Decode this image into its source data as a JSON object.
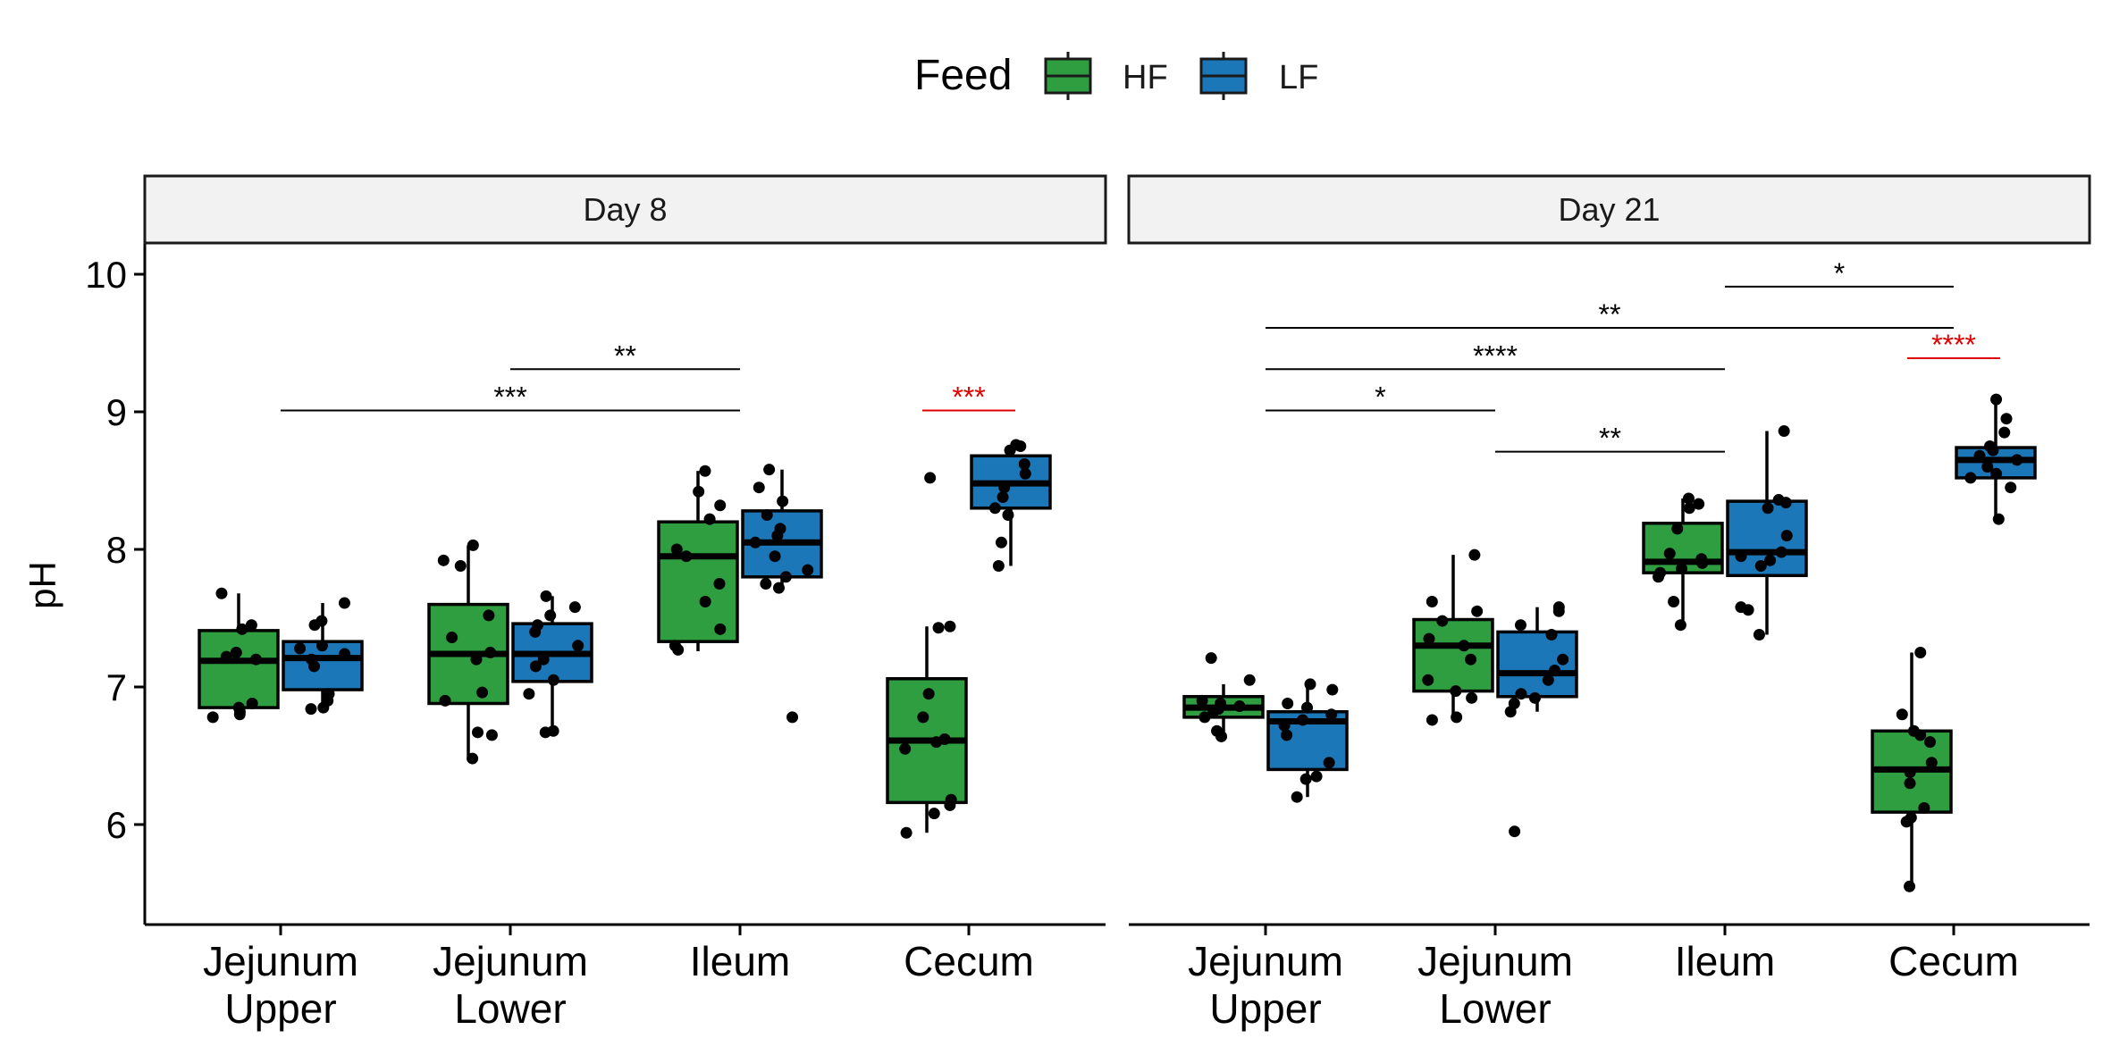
{
  "chart_data": {
    "type": "box",
    "ylabel": "pH",
    "ylim": [
      5.3,
      10.2
    ],
    "y_ticks": [
      6,
      7,
      8,
      9,
      10
    ],
    "grid": false,
    "legend": {
      "title": "Feed",
      "position": "top",
      "items": [
        {
          "label": "HF",
          "color": "#2e9e41"
        },
        {
          "label": "LF",
          "color": "#1c77b9"
        }
      ]
    },
    "categories": [
      {
        "lines": [
          "Jejunum",
          "Upper"
        ]
      },
      {
        "lines": [
          "Jejunum",
          "Lower"
        ]
      },
      {
        "lines": [
          "Ileum"
        ]
      },
      {
        "lines": [
          "Cecum"
        ]
      }
    ],
    "facets": [
      {
        "label": "Day 8",
        "groups": [
          {
            "series": [
              {
                "feed": "HF",
                "min": 6.78,
                "q1": 6.85,
                "median": 7.19,
                "q3": 7.41,
                "max": 7.68,
                "points": [
                  7.68,
                  7.45,
                  7.42,
                  7.25,
                  7.22,
                  7.2,
                  6.88,
                  6.85,
                  6.82,
                  6.8,
                  6.78
                ]
              },
              {
                "feed": "LF",
                "min": 6.84,
                "q1": 6.98,
                "median": 7.21,
                "q3": 7.33,
                "max": 7.61,
                "points": [
                  7.61,
                  7.48,
                  7.45,
                  7.3,
                  7.28,
                  7.24,
                  7.2,
                  7.15,
                  6.95,
                  6.9,
                  6.85,
                  6.84
                ]
              }
            ]
          },
          {
            "series": [
              {
                "feed": "HF",
                "min": 6.49,
                "q1": 6.88,
                "median": 7.24,
                "q3": 7.6,
                "max": 8.03,
                "points": [
                  8.03,
                  7.92,
                  7.88,
                  7.52,
                  7.36,
                  7.25,
                  7.2,
                  6.96,
                  6.9,
                  6.67,
                  6.65,
                  6.48
                ]
              },
              {
                "feed": "LF",
                "min": 6.67,
                "q1": 7.04,
                "median": 7.24,
                "q3": 7.46,
                "max": 7.66,
                "points": [
                  7.66,
                  7.58,
                  7.52,
                  7.45,
                  7.4,
                  7.3,
                  7.2,
                  7.15,
                  7.05,
                  6.95,
                  6.68,
                  6.67
                ]
              }
            ]
          },
          {
            "series": [
              {
                "feed": "HF",
                "min": 7.26,
                "q1": 7.33,
                "median": 7.95,
                "q3": 8.2,
                "max": 8.57,
                "points": [
                  8.57,
                  8.42,
                  8.32,
                  8.22,
                  8.0,
                  7.95,
                  7.75,
                  7.62,
                  7.42,
                  7.3,
                  7.27
                ]
              },
              {
                "feed": "LF",
                "min": 7.72,
                "q1": 7.8,
                "median": 8.05,
                "q3": 8.28,
                "max": 8.58,
                "points": [
                  8.58,
                  8.45,
                  8.35,
                  8.25,
                  8.15,
                  8.1,
                  8.05,
                  7.95,
                  7.85,
                  7.8,
                  7.75,
                  7.72,
                  6.78
                ]
              }
            ]
          },
          {
            "series": [
              {
                "feed": "HF",
                "min": 5.94,
                "q1": 6.16,
                "median": 6.61,
                "q3": 7.06,
                "max": 7.44,
                "points": [
                  8.52,
                  7.44,
                  7.43,
                  6.95,
                  6.78,
                  6.62,
                  6.6,
                  6.55,
                  6.18,
                  6.14,
                  6.08,
                  5.94
                ]
              },
              {
                "feed": "LF",
                "min": 7.88,
                "q1": 8.3,
                "median": 8.48,
                "q3": 8.68,
                "max": 8.76,
                "points": [
                  8.76,
                  8.75,
                  8.72,
                  8.62,
                  8.55,
                  8.45,
                  8.38,
                  8.3,
                  8.25,
                  8.05,
                  7.88
                ]
              }
            ]
          }
        ],
        "significance": [
          {
            "from": 0,
            "to": 2,
            "level": 9.01,
            "label": "***",
            "color": "#000000"
          },
          {
            "from": 1,
            "to": 2,
            "level": 9.31,
            "label": "**",
            "color": "#000000"
          },
          {
            "group": 3,
            "level": 9.01,
            "label": "***",
            "color": "#e00000"
          }
        ]
      },
      {
        "label": "Day 21",
        "groups": [
          {
            "series": [
              {
                "feed": "HF",
                "min": 6.65,
                "q1": 6.78,
                "median": 6.85,
                "q3": 6.93,
                "max": 7.02,
                "points": [
                  7.21,
                  7.05,
                  6.9,
                  6.88,
                  6.86,
                  6.84,
                  6.82,
                  6.78,
                  6.68,
                  6.64
                ]
              },
              {
                "feed": "LF",
                "min": 6.2,
                "q1": 6.4,
                "median": 6.75,
                "q3": 6.82,
                "max": 7.02,
                "points": [
                  7.02,
                  6.98,
                  6.88,
                  6.85,
                  6.8,
                  6.76,
                  6.72,
                  6.65,
                  6.45,
                  6.35,
                  6.33,
                  6.2
                ]
              }
            ]
          },
          {
            "series": [
              {
                "feed": "HF",
                "min": 6.76,
                "q1": 6.97,
                "median": 7.3,
                "q3": 7.49,
                "max": 7.96,
                "points": [
                  7.96,
                  7.62,
                  7.55,
                  7.48,
                  7.35,
                  7.3,
                  7.2,
                  7.05,
                  6.97,
                  6.92,
                  6.78,
                  6.76
                ]
              },
              {
                "feed": "LF",
                "min": 6.82,
                "q1": 6.93,
                "median": 7.1,
                "q3": 7.4,
                "max": 7.58,
                "points": [
                  7.58,
                  7.55,
                  7.45,
                  7.38,
                  7.2,
                  7.12,
                  7.05,
                  6.95,
                  6.92,
                  6.88,
                  6.82,
                  5.95
                ]
              }
            ]
          },
          {
            "series": [
              {
                "feed": "HF",
                "min": 7.45,
                "q1": 7.83,
                "median": 7.91,
                "q3": 8.19,
                "max": 8.37,
                "points": [
                  8.37,
                  8.33,
                  8.3,
                  8.15,
                  7.97,
                  7.93,
                  7.9,
                  7.86,
                  7.83,
                  7.8,
                  7.62,
                  7.45
                ]
              },
              {
                "feed": "LF",
                "min": 7.38,
                "q1": 7.81,
                "median": 7.98,
                "q3": 8.35,
                "max": 8.86,
                "points": [
                  8.86,
                  8.36,
                  8.34,
                  8.3,
                  8.1,
                  7.98,
                  7.95,
                  7.92,
                  7.88,
                  7.58,
                  7.56,
                  7.38
                ]
              }
            ]
          },
          {
            "series": [
              {
                "feed": "HF",
                "min": 5.55,
                "q1": 6.09,
                "median": 6.4,
                "q3": 6.68,
                "max": 7.25,
                "points": [
                  7.25,
                  6.8,
                  6.68,
                  6.65,
                  6.6,
                  6.45,
                  6.38,
                  6.3,
                  6.12,
                  6.05,
                  6.02,
                  5.55
                ]
              },
              {
                "feed": "LF",
                "min": 8.22,
                "q1": 8.52,
                "median": 8.65,
                "q3": 8.74,
                "max": 9.09,
                "points": [
                  9.09,
                  8.95,
                  8.85,
                  8.75,
                  8.72,
                  8.68,
                  8.65,
                  8.6,
                  8.55,
                  8.52,
                  8.45,
                  8.22
                ]
              }
            ]
          }
        ],
        "significance": [
          {
            "from": 0,
            "to": 1,
            "level": 9.01,
            "label": "*",
            "color": "#000000"
          },
          {
            "from": 1,
            "to": 2,
            "level": 8.71,
            "label": "**",
            "color": "#000000"
          },
          {
            "from": 0,
            "to": 2,
            "level": 9.31,
            "label": "****",
            "color": "#000000"
          },
          {
            "from": 0,
            "to": 3,
            "level": 9.61,
            "label": "**",
            "color": "#000000"
          },
          {
            "from": 2,
            "to": 3,
            "level": 9.91,
            "label": "*",
            "color": "#000000"
          },
          {
            "group": 3,
            "level": 9.39,
            "label": "****",
            "color": "#e00000"
          }
        ]
      }
    ]
  }
}
